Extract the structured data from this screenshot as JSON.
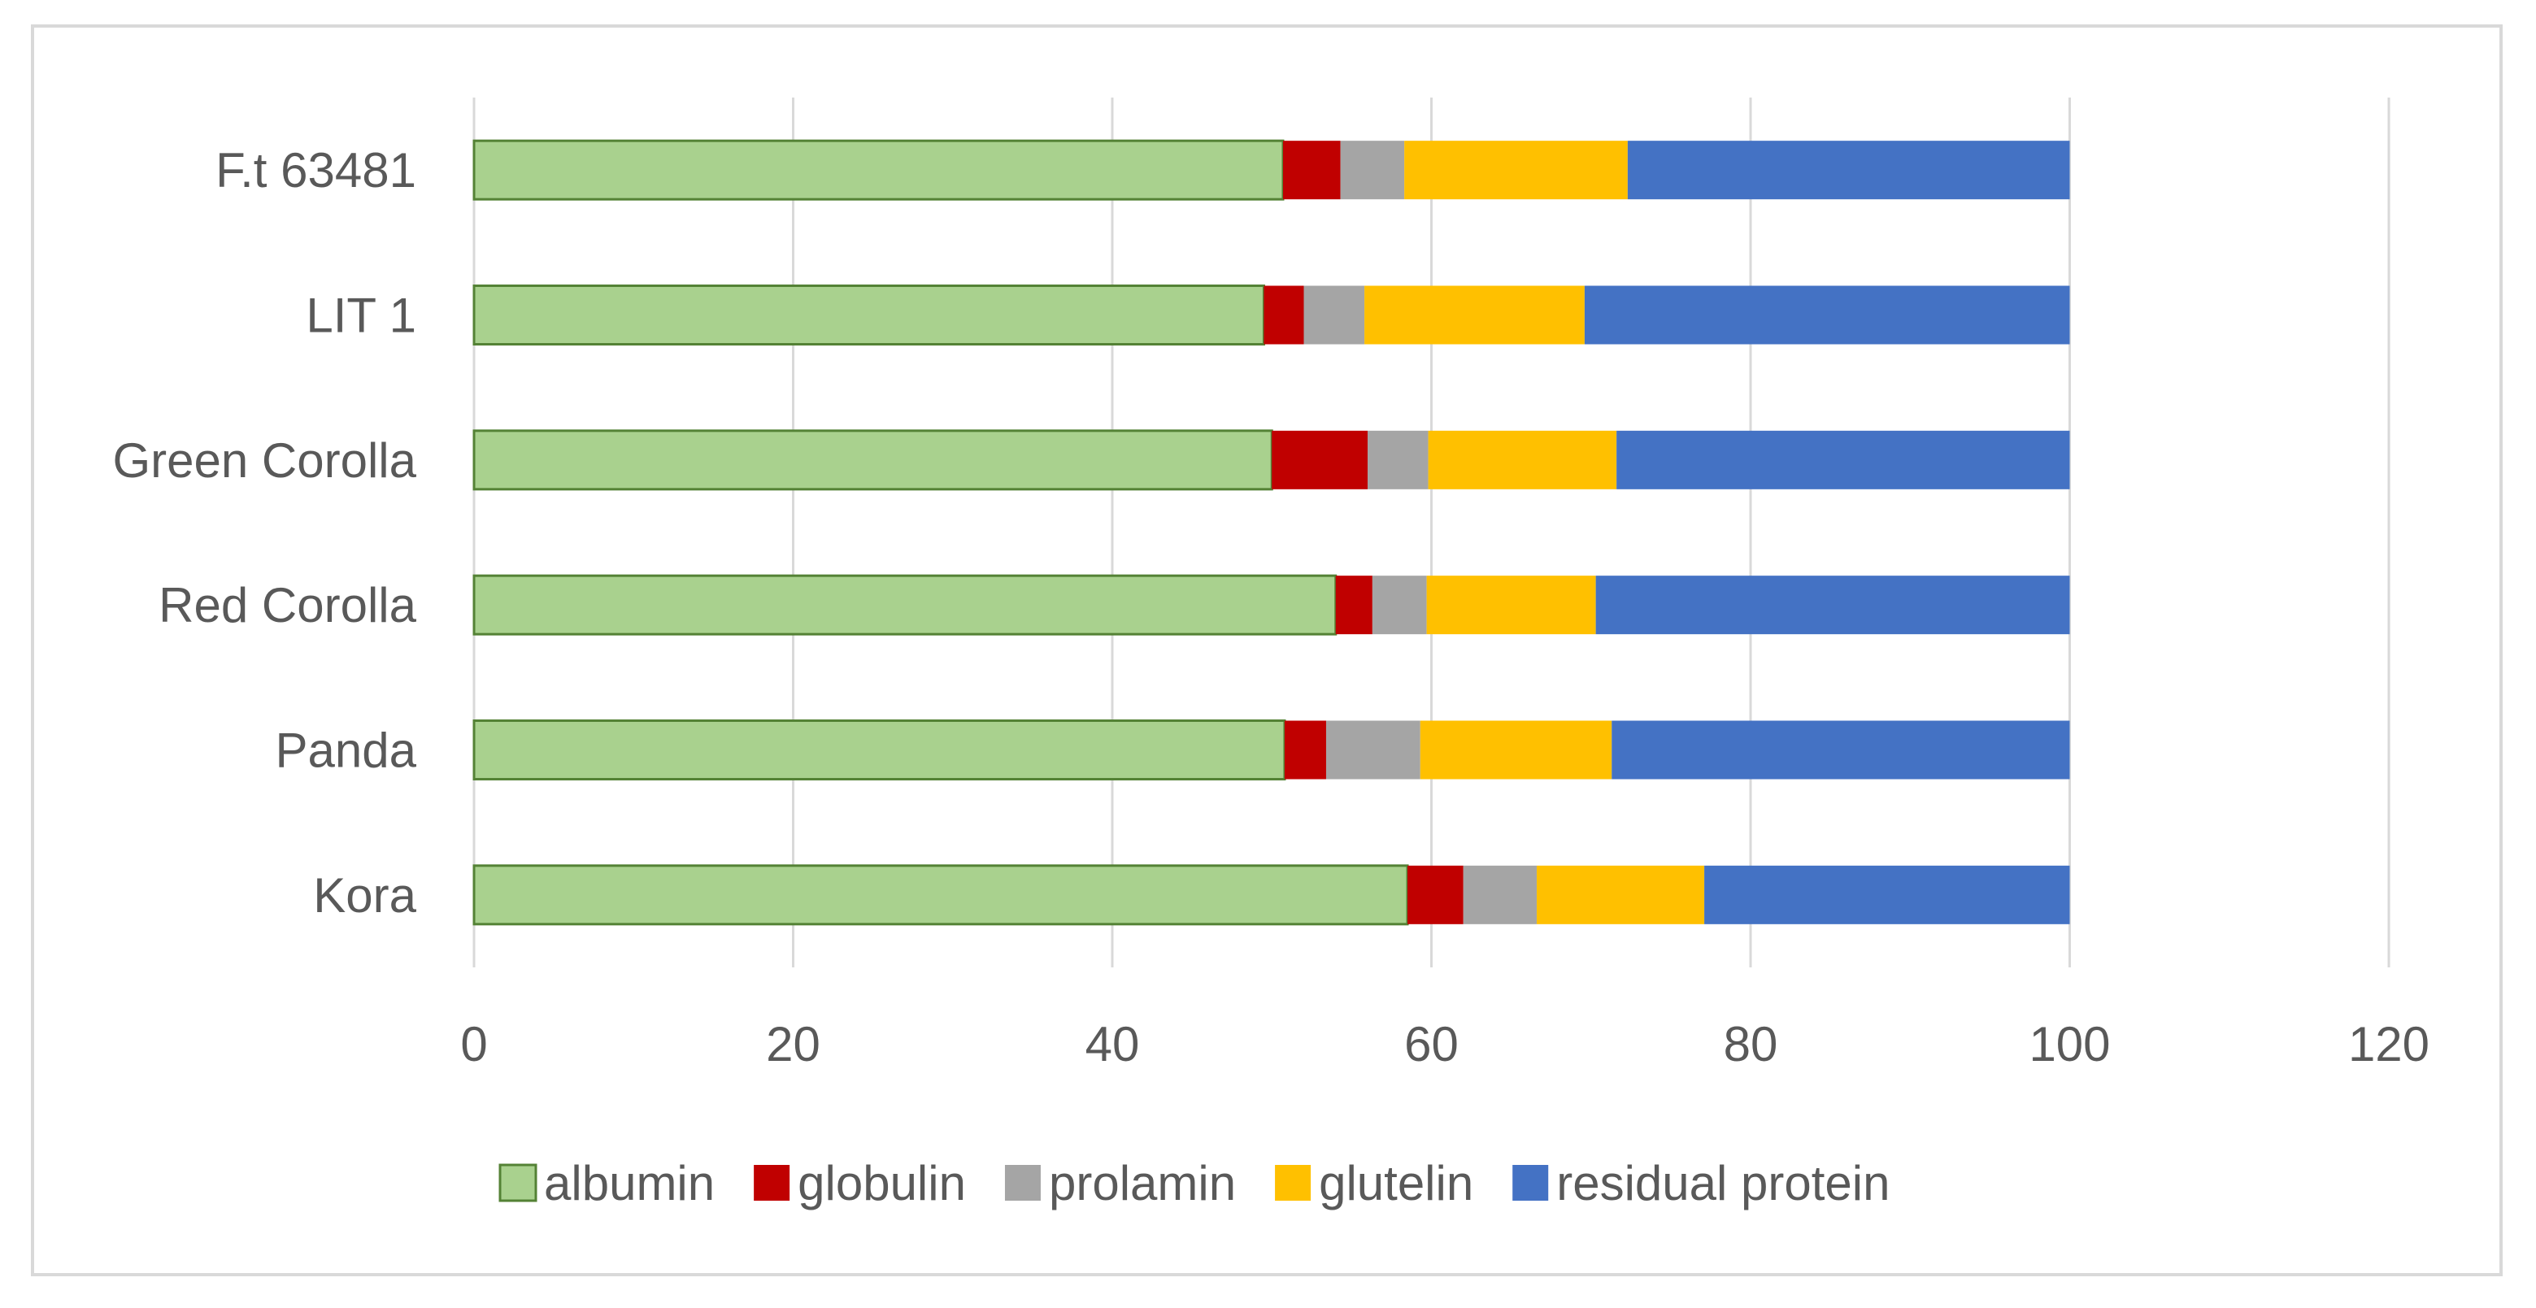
{
  "chart_data": {
    "type": "bar",
    "orientation": "horizontal",
    "stacked": true,
    "categories": [
      "F.t 63481",
      "LIT 1",
      "Green Corolla",
      "Red Corolla",
      "Panda",
      "Kora"
    ],
    "series": [
      {
        "name": "albumin",
        "color": "#a9d18e",
        "values": [
          50.7,
          49.5,
          50.0,
          54.0,
          50.8,
          58.5
        ]
      },
      {
        "name": "globulin",
        "color": "#c00000",
        "values": [
          3.6,
          2.5,
          6.0,
          2.3,
          2.6,
          3.5
        ]
      },
      {
        "name": "prolamin",
        "color": "#a5a5a5",
        "values": [
          4.0,
          3.8,
          3.8,
          3.4,
          5.9,
          4.6
        ]
      },
      {
        "name": "glutelin",
        "color": "#ffc000",
        "values": [
          14.0,
          13.8,
          11.8,
          10.6,
          12.0,
          10.5
        ]
      },
      {
        "name": "residual protein",
        "color": "#4472c4",
        "values": [
          27.7,
          30.4,
          28.4,
          29.7,
          28.7,
          22.9
        ]
      }
    ],
    "xlim": [
      0,
      120
    ],
    "xticks": [
      0,
      20,
      40,
      60,
      80,
      100,
      120
    ],
    "title": "",
    "xlabel": "",
    "ylabel": "",
    "grid": "vertical",
    "legend": "bottom"
  },
  "colors": {
    "grid": "#d9d9d9",
    "text": "#595959",
    "frame": "#d9d9d9",
    "albumin_outline": "#548235"
  }
}
